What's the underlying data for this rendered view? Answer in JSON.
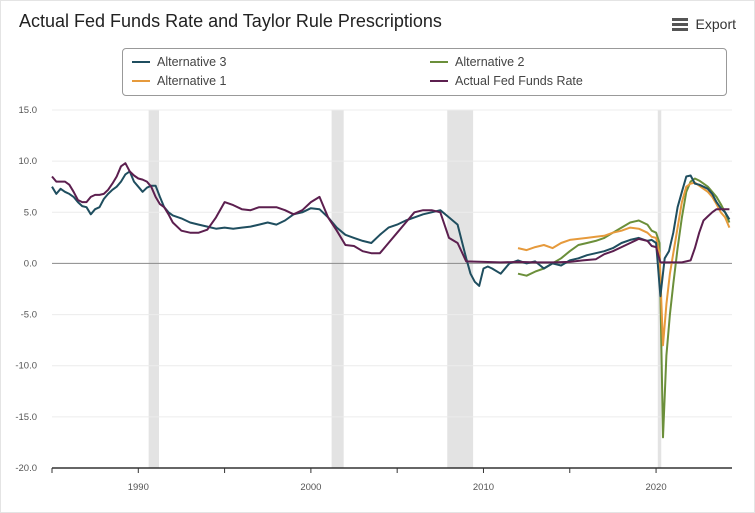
{
  "title": "Actual Fed Funds Rate and Taylor Rule Prescriptions",
  "export": {
    "label": "Export",
    "icon": "hamburger-menu-icon"
  },
  "chart_data": {
    "type": "line",
    "title": "Actual Fed Funds Rate and Taylor Rule Prescriptions",
    "xlabel": "",
    "ylabel": "",
    "xlim": [
      1985.0,
      2024.4
    ],
    "ylim": [
      -20,
      15
    ],
    "y_ticks": [
      "15.0",
      "10.0",
      "5.0",
      "0.0",
      "-5.0",
      "-10.0",
      "-15.0",
      "-20.0"
    ],
    "x_ticks": [
      "1990",
      "2000",
      "2010",
      "2020"
    ],
    "grid": "horizontal",
    "legend_position": "top",
    "recessions": [
      [
        1990.6,
        1991.2
      ],
      [
        2001.2,
        2001.9
      ],
      [
        2007.9,
        2009.4
      ],
      [
        2020.1,
        2020.3
      ]
    ],
    "series": [
      {
        "name": "Alternative 3",
        "color": "#1f4e5f",
        "x": [
          1985.0,
          1985.25,
          1985.5,
          1985.75,
          1986.0,
          1986.25,
          1986.5,
          1986.75,
          1987.0,
          1987.25,
          1987.5,
          1987.75,
          1988.0,
          1988.25,
          1988.5,
          1988.75,
          1989.0,
          1989.25,
          1989.5,
          1989.75,
          1990.0,
          1990.25,
          1990.5,
          1990.75,
          1991.0,
          1991.25,
          1991.5,
          1991.75,
          1992.0,
          1992.5,
          1993.0,
          1993.5,
          1994.0,
          1994.5,
          1995.0,
          1995.5,
          1996.0,
          1996.5,
          1997.0,
          1997.5,
          1998.0,
          1998.5,
          1999.0,
          1999.5,
          2000.0,
          2000.5,
          2001.0,
          2001.5,
          2002.0,
          2002.5,
          2003.0,
          2003.5,
          2004.0,
          2004.5,
          2005.0,
          2005.5,
          2006.0,
          2006.5,
          2007.0,
          2007.5,
          2008.0,
          2008.5,
          2009.0,
          2009.25,
          2009.5,
          2009.75,
          2010.0,
          2010.25,
          2010.5,
          2011.0,
          2011.5,
          2012.0,
          2012.5,
          2013.0,
          2013.5,
          2014.0,
          2014.5,
          2015.0,
          2015.5,
          2016.0,
          2016.5,
          2017.0,
          2017.5,
          2018.0,
          2018.5,
          2019.0,
          2019.5,
          2019.75,
          2020.0,
          2020.25,
          2020.5,
          2020.75,
          2021.0,
          2021.25,
          2021.5,
          2021.75,
          2022.0,
          2022.25,
          2022.5,
          2022.75,
          2023.0,
          2023.25,
          2023.5,
          2023.75,
          2024.0,
          2024.25
        ],
        "values": [
          7.5,
          6.8,
          7.3,
          7.0,
          6.8,
          6.5,
          6.0,
          5.6,
          5.5,
          4.8,
          5.3,
          5.5,
          6.3,
          6.8,
          7.2,
          7.5,
          8.0,
          8.7,
          9.0,
          8.0,
          7.5,
          7.0,
          7.4,
          7.6,
          7.6,
          6.5,
          5.5,
          5.0,
          4.7,
          4.4,
          4.0,
          3.8,
          3.6,
          3.4,
          3.5,
          3.4,
          3.5,
          3.6,
          3.8,
          4.0,
          3.8,
          4.2,
          4.8,
          5.0,
          5.4,
          5.3,
          4.5,
          3.5,
          2.8,
          2.5,
          2.2,
          2.0,
          2.8,
          3.5,
          3.8,
          4.2,
          4.5,
          4.8,
          5.0,
          5.2,
          4.5,
          3.8,
          0.5,
          -1.0,
          -1.8,
          -2.2,
          -0.5,
          -0.3,
          -0.5,
          -1.0,
          0.0,
          0.3,
          0.0,
          0.2,
          -0.5,
          0.0,
          -0.2,
          0.3,
          0.5,
          0.8,
          1.0,
          1.2,
          1.5,
          2.0,
          2.3,
          2.5,
          2.2,
          2.3,
          2.0,
          -3.2,
          0.5,
          1.2,
          3.0,
          5.5,
          7.0,
          8.5,
          8.6,
          7.8,
          7.7,
          7.5,
          7.3,
          6.8,
          6.0,
          5.4,
          5.0,
          4.3
        ]
      },
      {
        "name": "Alternative 2",
        "color": "#6b8f3a",
        "x": [
          2012.0,
          2012.5,
          2013.0,
          2013.5,
          2014.0,
          2014.5,
          2015.0,
          2015.5,
          2016.0,
          2016.5,
          2017.0,
          2017.5,
          2018.0,
          2018.5,
          2019.0,
          2019.5,
          2019.75,
          2020.0,
          2020.2,
          2020.4,
          2020.6,
          2020.8,
          2021.0,
          2021.25,
          2021.5,
          2021.75,
          2022.0,
          2022.25,
          2022.5,
          2022.75,
          2023.0,
          2023.25,
          2023.5,
          2023.75,
          2024.0,
          2024.25
        ],
        "values": [
          -1.0,
          -1.2,
          -0.8,
          -0.5,
          0.0,
          0.5,
          1.2,
          1.8,
          2.0,
          2.2,
          2.5,
          3.0,
          3.5,
          4.0,
          4.2,
          3.8,
          3.2,
          3.0,
          2.0,
          -17.0,
          -9.0,
          -5.0,
          -2.0,
          1.5,
          4.5,
          7.0,
          8.0,
          8.3,
          8.1,
          7.8,
          7.5,
          7.0,
          6.5,
          5.8,
          5.0,
          4.0
        ]
      },
      {
        "name": "Alternative 1",
        "color": "#e69a3c",
        "x": [
          2012.0,
          2012.5,
          2013.0,
          2013.5,
          2014.0,
          2014.5,
          2015.0,
          2015.5,
          2016.0,
          2016.5,
          2017.0,
          2017.5,
          2018.0,
          2018.5,
          2019.0,
          2019.5,
          2019.75,
          2020.0,
          2020.2,
          2020.4,
          2020.6,
          2020.8,
          2021.0,
          2021.25,
          2021.5,
          2021.75,
          2022.0,
          2022.25,
          2022.5,
          2022.75,
          2023.0,
          2023.25,
          2023.5,
          2023.75,
          2024.0,
          2024.25
        ],
        "values": [
          1.5,
          1.3,
          1.6,
          1.8,
          1.5,
          2.0,
          2.3,
          2.4,
          2.5,
          2.6,
          2.7,
          3.0,
          3.2,
          3.5,
          3.4,
          3.0,
          2.6,
          2.5,
          1.0,
          -8.0,
          -4.0,
          -1.0,
          1.0,
          3.5,
          6.0,
          7.5,
          7.8,
          7.9,
          7.6,
          7.3,
          7.0,
          6.5,
          5.8,
          5.0,
          4.5,
          3.5
        ]
      },
      {
        "name": "Actual Fed Funds Rate",
        "color": "#5c1f4f",
        "x": [
          1985.0,
          1985.25,
          1985.5,
          1985.75,
          1986.0,
          1986.25,
          1986.5,
          1986.75,
          1987.0,
          1987.25,
          1987.5,
          1987.75,
          1988.0,
          1988.25,
          1988.5,
          1988.75,
          1989.0,
          1989.25,
          1989.5,
          1989.75,
          1990.0,
          1990.25,
          1990.5,
          1990.75,
          1991.0,
          1991.25,
          1991.5,
          1991.75,
          1992.0,
          1992.5,
          1993.0,
          1993.5,
          1994.0,
          1994.5,
          1995.0,
          1995.5,
          1996.0,
          1996.5,
          1997.0,
          1997.5,
          1998.0,
          1998.5,
          1999.0,
          1999.5,
          2000.0,
          2000.5,
          2001.0,
          2001.5,
          2002.0,
          2002.5,
          2003.0,
          2003.5,
          2004.0,
          2004.5,
          2005.0,
          2005.5,
          2006.0,
          2006.5,
          2007.0,
          2007.5,
          2008.0,
          2008.5,
          2009.0,
          2010.0,
          2011.0,
          2012.0,
          2013.0,
          2014.0,
          2015.0,
          2015.75,
          2016.5,
          2017.0,
          2017.5,
          2018.0,
          2018.5,
          2019.0,
          2019.5,
          2019.75,
          2020.0,
          2020.25,
          2020.5,
          2021.0,
          2021.5,
          2022.0,
          2022.25,
          2022.5,
          2022.75,
          2023.0,
          2023.25,
          2023.5,
          2023.75,
          2024.0,
          2024.25
        ],
        "values": [
          8.5,
          8.0,
          8.0,
          8.0,
          7.7,
          7.0,
          6.2,
          6.0,
          6.0,
          6.5,
          6.7,
          6.7,
          6.8,
          7.2,
          7.8,
          8.5,
          9.5,
          9.8,
          9.0,
          8.6,
          8.3,
          8.2,
          8.0,
          7.5,
          6.5,
          5.8,
          5.5,
          4.8,
          4.0,
          3.2,
          3.0,
          3.0,
          3.3,
          4.5,
          6.0,
          5.7,
          5.3,
          5.2,
          5.5,
          5.5,
          5.5,
          5.2,
          4.8,
          5.2,
          6.0,
          6.5,
          4.5,
          3.2,
          1.8,
          1.7,
          1.2,
          1.0,
          1.0,
          2.0,
          3.0,
          4.0,
          5.0,
          5.2,
          5.2,
          5.0,
          2.5,
          2.0,
          0.2,
          0.15,
          0.1,
          0.15,
          0.1,
          0.1,
          0.15,
          0.3,
          0.4,
          0.9,
          1.2,
          1.6,
          2.0,
          2.4,
          2.2,
          1.7,
          1.6,
          0.1,
          0.1,
          0.1,
          0.1,
          0.3,
          1.5,
          3.0,
          4.2,
          4.6,
          5.0,
          5.3,
          5.3,
          5.3,
          5.3
        ]
      }
    ]
  }
}
